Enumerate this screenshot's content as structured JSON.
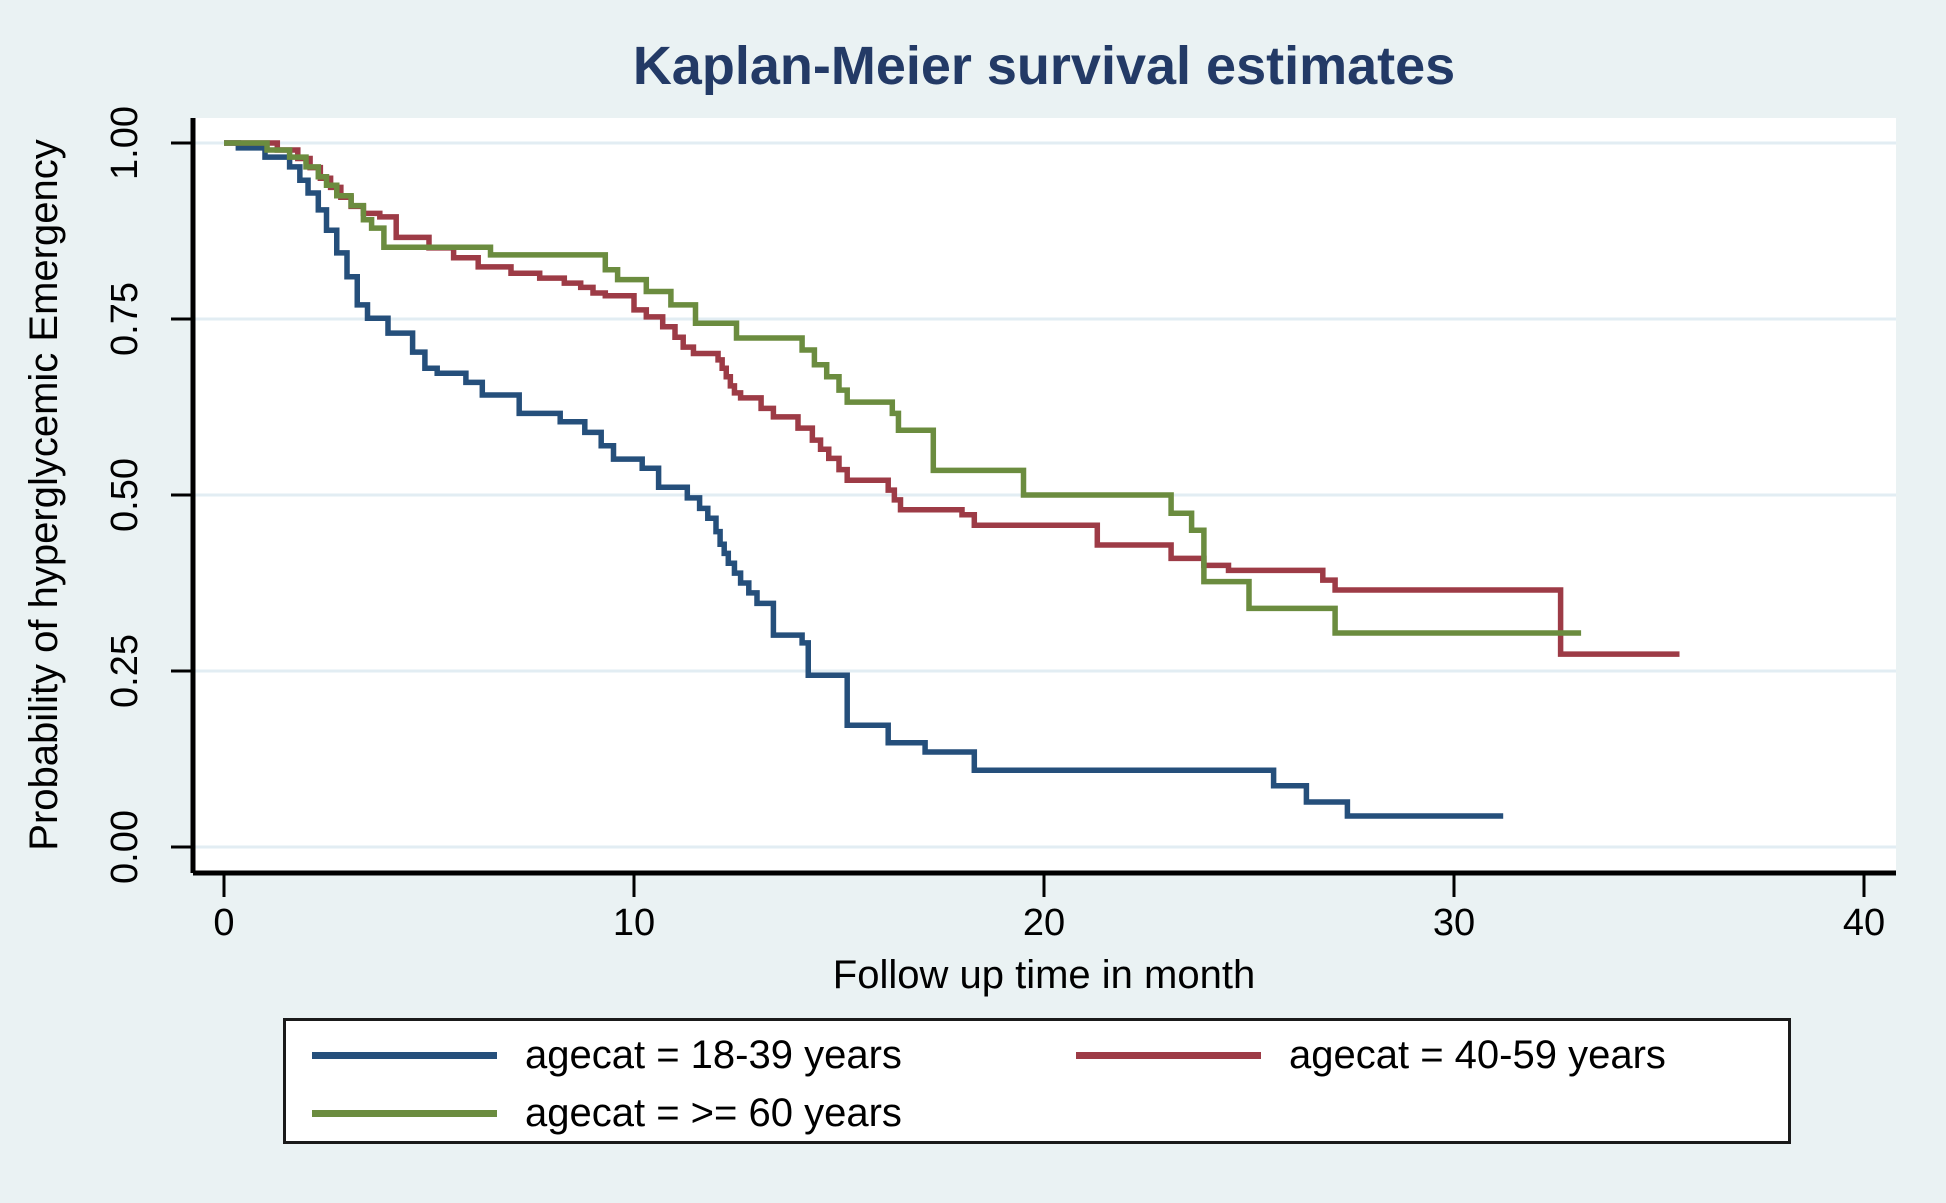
{
  "chart_data": {
    "type": "line",
    "variant": "kaplan_meier_step_survival",
    "title": "Kaplan-Meier survival estimates",
    "xlabel": "Follow up time in month",
    "ylabel": "Probability of hyperglycemic Emergency",
    "xlim": [
      0,
      40
    ],
    "ylim": [
      0,
      1
    ],
    "grid": true,
    "legend_position": "bottom",
    "x_ticks": [
      {
        "value": 0,
        "label": "0"
      },
      {
        "value": 10,
        "label": "10"
      },
      {
        "value": 20,
        "label": "20"
      },
      {
        "value": 30,
        "label": "30"
      },
      {
        "value": 40,
        "label": "40"
      }
    ],
    "y_ticks": [
      {
        "value": 0.0,
        "label": "0.00"
      },
      {
        "value": 0.25,
        "label": "0.25"
      },
      {
        "value": 0.5,
        "label": "0.50"
      },
      {
        "value": 0.75,
        "label": "0.75"
      },
      {
        "value": 1.0,
        "label": "1.00"
      }
    ],
    "series": [
      {
        "name": "agecat = 18-39 years",
        "color": "#254f7b",
        "end_time": 31.2,
        "points": [
          [
            0,
            1.0
          ],
          [
            0.35,
            0.993
          ],
          [
            1.0,
            0.98
          ],
          [
            1.6,
            0.966
          ],
          [
            1.85,
            0.947
          ],
          [
            2.05,
            0.929
          ],
          [
            2.3,
            0.905
          ],
          [
            2.5,
            0.876
          ],
          [
            2.75,
            0.844
          ],
          [
            3.0,
            0.81
          ],
          [
            3.25,
            0.77
          ],
          [
            3.5,
            0.751
          ],
          [
            4.0,
            0.73
          ],
          [
            4.6,
            0.703
          ],
          [
            4.9,
            0.68
          ],
          [
            5.2,
            0.673
          ],
          [
            5.9,
            0.66
          ],
          [
            6.3,
            0.642
          ],
          [
            7.2,
            0.616
          ],
          [
            8.2,
            0.604
          ],
          [
            8.8,
            0.589
          ],
          [
            9.2,
            0.57
          ],
          [
            9.5,
            0.551
          ],
          [
            10.2,
            0.538
          ],
          [
            10.6,
            0.511
          ],
          [
            11.3,
            0.496
          ],
          [
            11.6,
            0.481
          ],
          [
            11.8,
            0.467
          ],
          [
            12.0,
            0.448
          ],
          [
            12.1,
            0.43
          ],
          [
            12.2,
            0.417
          ],
          [
            12.3,
            0.403
          ],
          [
            12.45,
            0.389
          ],
          [
            12.6,
            0.375
          ],
          [
            12.8,
            0.361
          ],
          [
            13.0,
            0.346
          ],
          [
            13.4,
            0.301
          ],
          [
            14.1,
            0.29
          ],
          [
            14.25,
            0.244
          ],
          [
            15.2,
            0.173
          ],
          [
            16.2,
            0.148
          ],
          [
            17.1,
            0.135
          ],
          [
            18.3,
            0.109
          ],
          [
            25.6,
            0.087
          ],
          [
            26.4,
            0.064
          ],
          [
            27.4,
            0.044
          ]
        ]
      },
      {
        "name": "agecat = 40-59 years",
        "color": "#9d3b46",
        "end_time": 35.5,
        "points": [
          [
            0,
            1.0
          ],
          [
            1.3,
            0.99
          ],
          [
            1.8,
            0.978
          ],
          [
            2.1,
            0.965
          ],
          [
            2.35,
            0.95
          ],
          [
            2.6,
            0.937
          ],
          [
            2.85,
            0.923
          ],
          [
            3.1,
            0.91
          ],
          [
            3.4,
            0.9
          ],
          [
            3.8,
            0.895
          ],
          [
            4.2,
            0.866
          ],
          [
            5.0,
            0.851
          ],
          [
            5.6,
            0.837
          ],
          [
            6.2,
            0.824
          ],
          [
            7.0,
            0.815
          ],
          [
            7.7,
            0.808
          ],
          [
            8.3,
            0.801
          ],
          [
            8.7,
            0.795
          ],
          [
            9.0,
            0.787
          ],
          [
            9.3,
            0.783
          ],
          [
            10.0,
            0.763
          ],
          [
            10.3,
            0.753
          ],
          [
            10.7,
            0.739
          ],
          [
            11.0,
            0.724
          ],
          [
            11.2,
            0.71
          ],
          [
            11.45,
            0.701
          ],
          [
            12.05,
            0.692
          ],
          [
            12.15,
            0.68
          ],
          [
            12.25,
            0.668
          ],
          [
            12.35,
            0.655
          ],
          [
            12.45,
            0.645
          ],
          [
            12.6,
            0.638
          ],
          [
            13.1,
            0.623
          ],
          [
            13.4,
            0.611
          ],
          [
            14.0,
            0.595
          ],
          [
            14.35,
            0.578
          ],
          [
            14.55,
            0.565
          ],
          [
            14.75,
            0.552
          ],
          [
            15.0,
            0.536
          ],
          [
            15.2,
            0.521
          ],
          [
            16.2,
            0.507
          ],
          [
            16.35,
            0.493
          ],
          [
            16.5,
            0.479
          ],
          [
            18.0,
            0.472
          ],
          [
            18.3,
            0.457
          ],
          [
            21.3,
            0.429
          ],
          [
            23.1,
            0.41
          ],
          [
            23.9,
            0.4
          ],
          [
            24.5,
            0.393
          ],
          [
            26.8,
            0.379
          ],
          [
            27.1,
            0.365
          ],
          [
            32.6,
            0.274
          ]
        ]
      },
      {
        "name": "agecat = >= 60 years",
        "color": "#6b8c3f",
        "end_time": 33.1,
        "points": [
          [
            0,
            1.0
          ],
          [
            1.05,
            0.99
          ],
          [
            1.6,
            0.98
          ],
          [
            2.0,
            0.966
          ],
          [
            2.3,
            0.952
          ],
          [
            2.5,
            0.94
          ],
          [
            2.75,
            0.925
          ],
          [
            3.1,
            0.911
          ],
          [
            3.4,
            0.891
          ],
          [
            3.6,
            0.879
          ],
          [
            3.9,
            0.852
          ],
          [
            6.5,
            0.841
          ],
          [
            9.3,
            0.82
          ],
          [
            9.6,
            0.806
          ],
          [
            10.3,
            0.789
          ],
          [
            10.9,
            0.77
          ],
          [
            11.5,
            0.744
          ],
          [
            12.5,
            0.723
          ],
          [
            14.1,
            0.706
          ],
          [
            14.4,
            0.685
          ],
          [
            14.7,
            0.668
          ],
          [
            15.0,
            0.649
          ],
          [
            15.2,
            0.632
          ],
          [
            16.3,
            0.616
          ],
          [
            16.45,
            0.592
          ],
          [
            17.3,
            0.535
          ],
          [
            19.5,
            0.5
          ],
          [
            23.1,
            0.474
          ],
          [
            23.6,
            0.45
          ],
          [
            23.9,
            0.377
          ],
          [
            25.0,
            0.339
          ],
          [
            27.1,
            0.304
          ]
        ]
      }
    ]
  },
  "colors": {
    "canvas_background": "#eaf2f3",
    "plot_background": "#ffffff",
    "gridline": "#e2edf3",
    "axis": "#000000",
    "title": "#233a66",
    "legend_border": "#1a1a1a",
    "legend_background": "#ffffff"
  }
}
